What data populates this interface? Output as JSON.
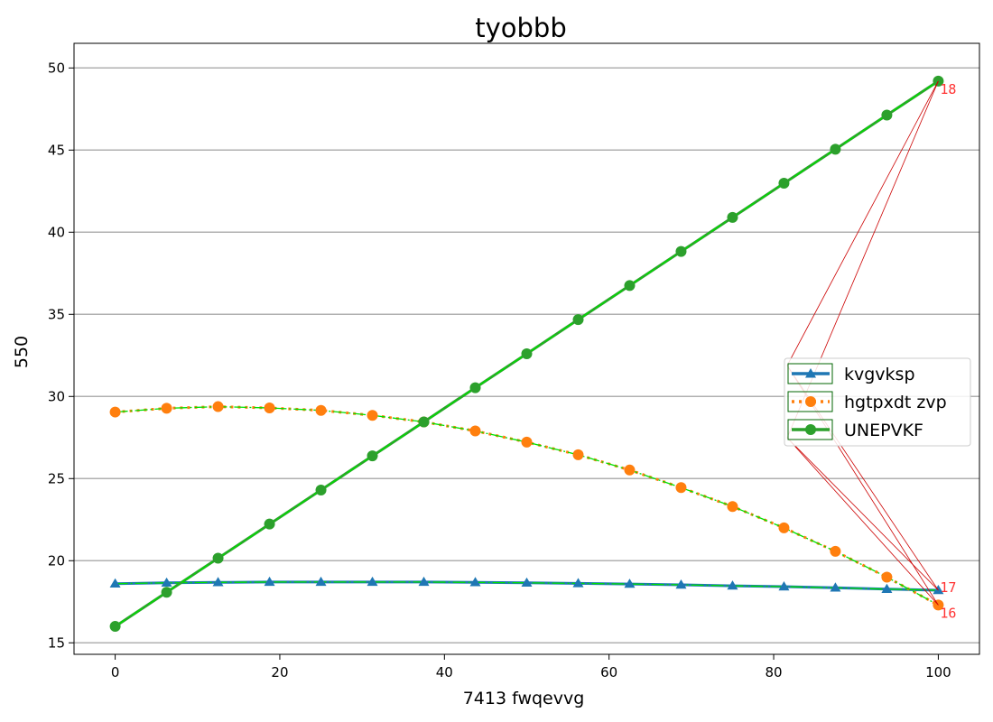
{
  "chart_data": {
    "type": "line",
    "title": "tyobbb",
    "xlabel": "7413 fwqevvg",
    "ylabel": "550",
    "xlim": [
      -5,
      105
    ],
    "ylim": [
      14.3,
      51.5
    ],
    "xticks": [
      0,
      20,
      40,
      60,
      80,
      100
    ],
    "yticks": [
      15,
      20,
      25,
      30,
      35,
      40,
      45,
      50
    ],
    "grid": "horizontal",
    "legend_position": "center-right",
    "x": [
      0,
      6.25,
      12.5,
      18.75,
      25,
      31.25,
      37.5,
      43.75,
      50,
      56.25,
      62.5,
      68.75,
      75,
      81.25,
      87.5,
      93.75,
      100
    ],
    "series": [
      {
        "name": "kvgvksp",
        "color": "#1f77b4",
        "marker": "triangle",
        "linestyle": "solid",
        "values": [
          18.6,
          18.65,
          18.68,
          18.7,
          18.7,
          18.7,
          18.7,
          18.68,
          18.65,
          18.62,
          18.58,
          18.53,
          18.47,
          18.42,
          18.35,
          18.27,
          18.2
        ]
      },
      {
        "name": "hgtpxdt zvp",
        "color": "#ff7f0e",
        "marker": "circle",
        "linestyle": "dotted",
        "values": [
          29.05,
          29.28,
          29.38,
          29.3,
          29.15,
          28.85,
          28.45,
          27.9,
          27.22,
          26.45,
          25.52,
          24.45,
          23.3,
          22.0,
          20.57,
          19.0,
          17.3
        ]
      },
      {
        "name": "UNEPVKF",
        "color": "#2ca02c",
        "marker": "circle",
        "linestyle": "solid",
        "values": [
          16.0,
          18.08,
          20.15,
          22.23,
          24.3,
          26.38,
          28.45,
          30.53,
          32.6,
          34.68,
          36.75,
          38.83,
          40.9,
          42.98,
          45.05,
          47.13,
          49.2
        ]
      }
    ],
    "annotations": [
      {
        "text": "18",
        "x": 100,
        "y": 49.2
      },
      {
        "text": "17",
        "x": 100,
        "y": 18.2
      },
      {
        "text": "16",
        "x": 100,
        "y": 17.3
      }
    ]
  }
}
